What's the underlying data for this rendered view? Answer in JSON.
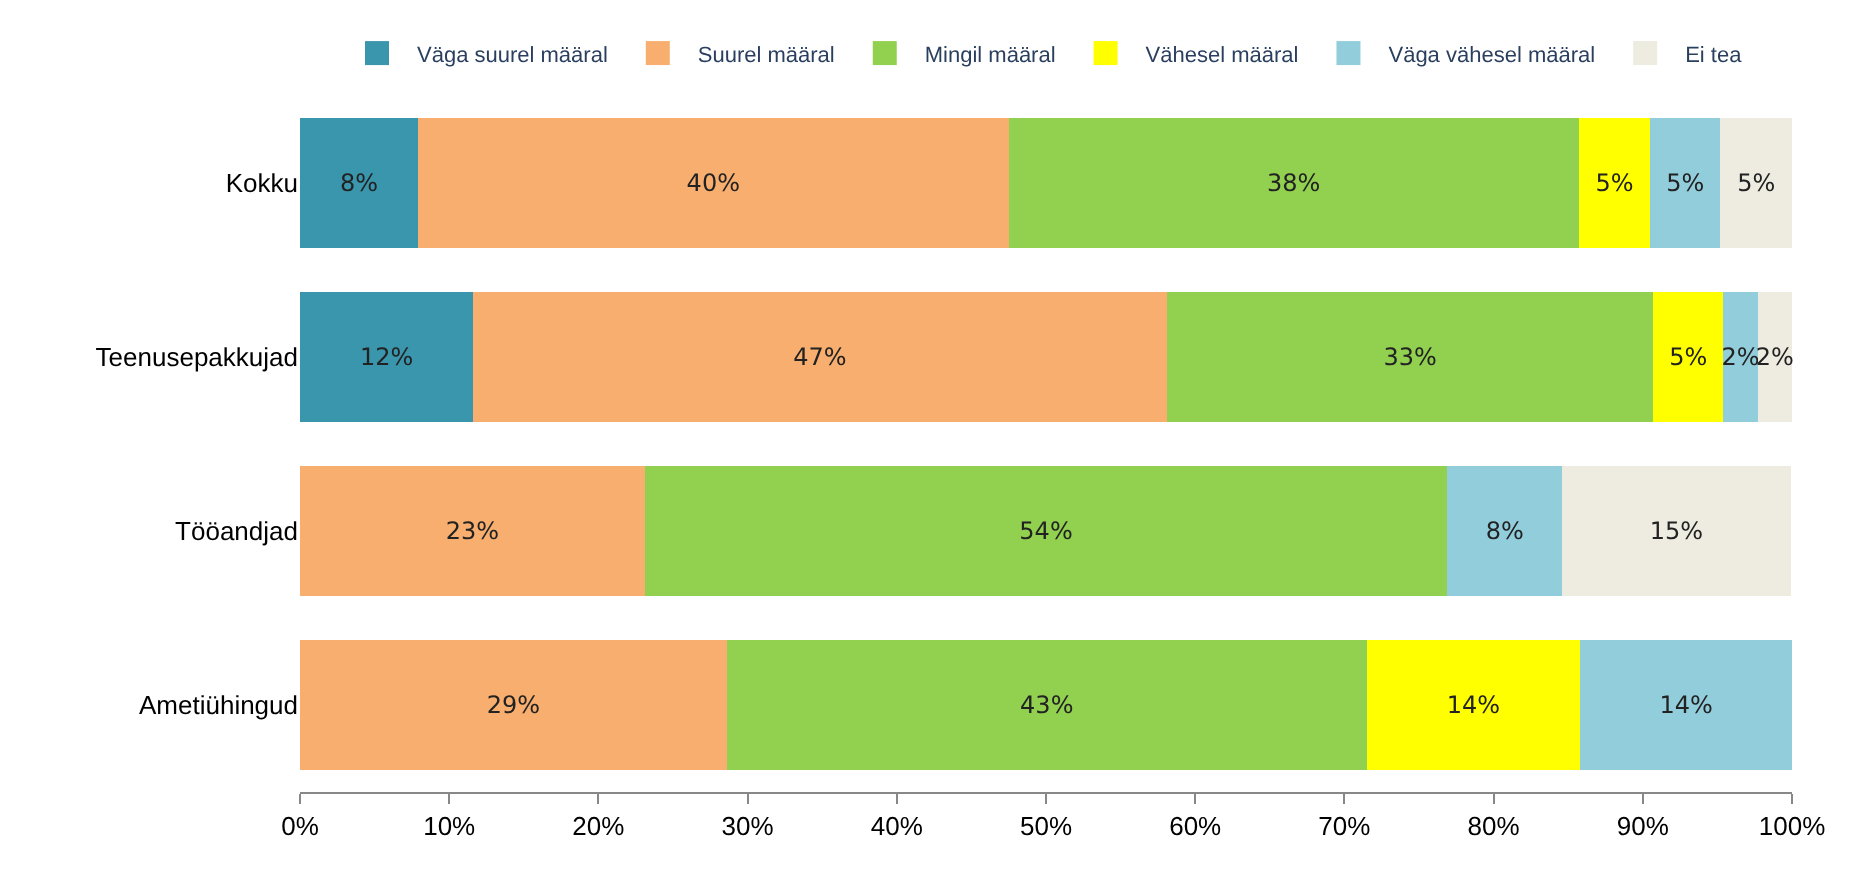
{
  "chart_data": {
    "type": "bar",
    "orientation": "horizontal",
    "stacked": true,
    "categories": [
      "Kokku",
      "Teenusepakkujad",
      "Tööandjad",
      "Ametiühingud"
    ],
    "series": [
      {
        "name": "Väga suurel määral",
        "color": "#3a96ad",
        "values": [
          7.9,
          11.6,
          null,
          null
        ],
        "value_labels": [
          "8%",
          "12%",
          null,
          null
        ]
      },
      {
        "name": "Suurel määral",
        "color": "#f8ae6e",
        "values": [
          39.6,
          46.5,
          23.1,
          28.6
        ],
        "value_labels": [
          "40%",
          "47%",
          "23%",
          "29%"
        ]
      },
      {
        "name": "Mingil määral",
        "color": "#92d050",
        "values": [
          38.2,
          32.6,
          53.8,
          42.9
        ],
        "value_labels": [
          "38%",
          "33%",
          "54%",
          "43%"
        ]
      },
      {
        "name": "Vähesel määral",
        "color": "#ffff00",
        "values": [
          4.8,
          4.7,
          null,
          14.3
        ],
        "value_labels": [
          "5%",
          "5%",
          null,
          "14%"
        ]
      },
      {
        "name": "Väga vähesel määral",
        "color": "#92cddc",
        "values": [
          4.7,
          2.3,
          7.7,
          14.2
        ],
        "value_labels": [
          "5%",
          "2%",
          "8%",
          "14%"
        ]
      },
      {
        "name": "Ei tea",
        "color": "#eeece1",
        "values": [
          4.8,
          2.3,
          15.3,
          null
        ],
        "value_labels": [
          "5%",
          "2%",
          "15%",
          null
        ]
      }
    ],
    "xlim": [
      0,
      100
    ],
    "xticks": [
      {
        "value": 0,
        "label": "0%"
      },
      {
        "value": 10,
        "label": "10%"
      },
      {
        "value": 20,
        "label": "20%"
      },
      {
        "value": 30,
        "label": "30%"
      },
      {
        "value": 40,
        "label": "40%"
      },
      {
        "value": 50,
        "label": "50%"
      },
      {
        "value": 60,
        "label": "60%"
      },
      {
        "value": 70,
        "label": "70%"
      },
      {
        "value": 80,
        "label": "80%"
      },
      {
        "value": 90,
        "label": "90%"
      },
      {
        "value": 100,
        "label": "100%"
      }
    ],
    "legend": "top"
  }
}
